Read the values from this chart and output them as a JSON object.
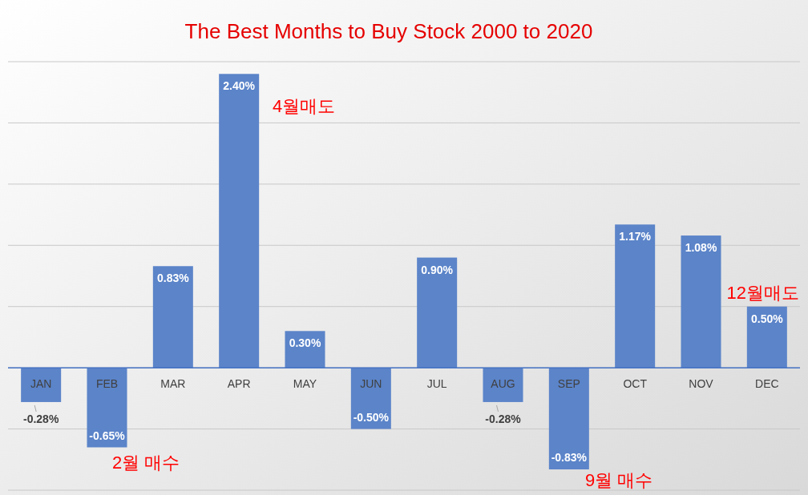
{
  "chart_data": {
    "type": "bar",
    "title": "The Best Months to Buy Stock 2000 to 2020",
    "categories": [
      "JAN",
      "FEB",
      "MAR",
      "APR",
      "MAY",
      "JUN",
      "JUL",
      "AUG",
      "SEP",
      "OCT",
      "NOV",
      "DEC"
    ],
    "values": [
      -0.28,
      -0.65,
      0.83,
      2.4,
      0.3,
      -0.5,
      0.9,
      -0.28,
      -0.83,
      1.17,
      1.08,
      0.5
    ],
    "value_labels": [
      "-0.28%",
      "-0.65%",
      "0.83%",
      "2.40%",
      "0.30%",
      "-0.50%",
      "0.90%",
      "-0.28%",
      "-0.83%",
      "1.17%",
      "1.08%",
      "0.50%"
    ],
    "color": "#5b84c9",
    "ylim": [
      -1,
      2.5
    ],
    "yticks": [
      {
        "value": -1,
        "label": null
      },
      {
        "value": -0.5,
        "label": null
      },
      {
        "value": 0,
        "label": null
      },
      {
        "value": 0.5,
        "label": null
      },
      {
        "value": 1,
        "label": null
      },
      {
        "value": 1.5,
        "label": null
      },
      {
        "value": 2,
        "label": null
      },
      {
        "value": 2.5,
        "label": null
      }
    ],
    "tick_labels": "x",
    "grid": "y",
    "annotations": [
      "2월 매수",
      "4월매도",
      "9월 매수",
      "12월매도"
    ]
  }
}
